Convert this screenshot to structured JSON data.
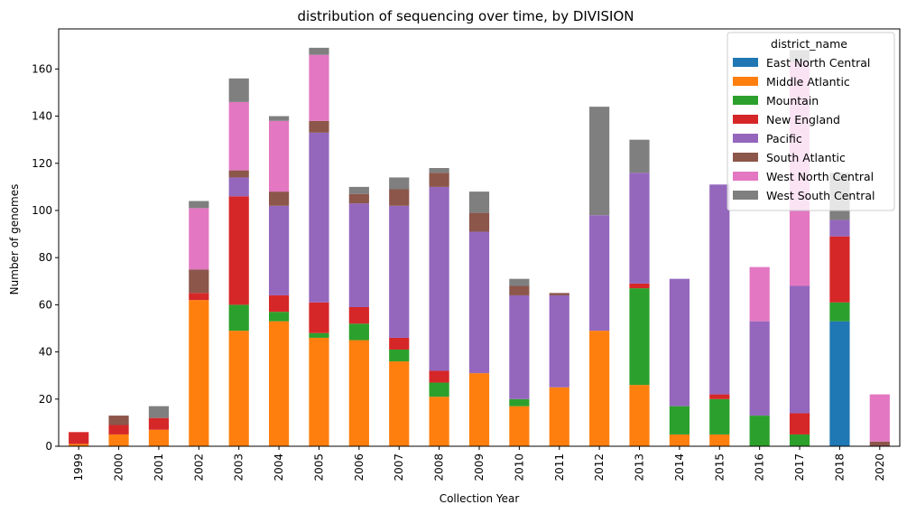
{
  "chart_data": {
    "type": "bar",
    "stacked": true,
    "title": "distribution of sequencing over time, by DIVISION",
    "xlabel": "Collection Year",
    "ylabel": "Number of genomes",
    "ylim": [
      0,
      177
    ],
    "yticks": [
      0,
      20,
      40,
      60,
      80,
      100,
      120,
      140,
      160
    ],
    "grid": false,
    "legend": {
      "title": "district_name",
      "placement": "top-right"
    },
    "categories": [
      "1999",
      "2000",
      "2001",
      "2002",
      "2003",
      "2004",
      "2005",
      "2006",
      "2007",
      "2008",
      "2009",
      "2010",
      "2011",
      "2012",
      "2013",
      "2014",
      "2015",
      "2016",
      "2017",
      "2018",
      "2020"
    ],
    "series": [
      {
        "name": "East North Central",
        "color": "#1f77b4",
        "values": [
          0,
          0,
          0,
          0,
          0,
          0,
          0,
          0,
          0,
          0,
          0,
          0,
          0,
          0,
          0,
          0,
          0,
          0,
          0,
          53,
          0
        ]
      },
      {
        "name": "Middle Atlantic",
        "color": "#ff7f0e",
        "values": [
          1,
          5,
          7,
          62,
          49,
          53,
          46,
          45,
          36,
          21,
          31,
          17,
          25,
          49,
          26,
          5,
          5,
          0,
          0,
          0,
          0
        ]
      },
      {
        "name": "Mountain",
        "color": "#2ca02c",
        "values": [
          0,
          0,
          0,
          0,
          11,
          4,
          2,
          7,
          5,
          6,
          0,
          3,
          0,
          0,
          41,
          12,
          15,
          13,
          5,
          8,
          0
        ]
      },
      {
        "name": "New England",
        "color": "#d62728",
        "values": [
          5,
          4,
          5,
          3,
          46,
          7,
          13,
          7,
          5,
          5,
          0,
          0,
          0,
          0,
          2,
          0,
          2,
          0,
          9,
          28,
          0
        ]
      },
      {
        "name": "Pacific",
        "color": "#9467bd",
        "values": [
          0,
          0,
          0,
          0,
          8,
          38,
          72,
          44,
          56,
          78,
          60,
          44,
          39,
          49,
          47,
          54,
          89,
          40,
          54,
          7,
          0
        ]
      },
      {
        "name": "South Atlantic",
        "color": "#8c564b",
        "values": [
          0,
          4,
          0,
          10,
          3,
          6,
          5,
          4,
          7,
          6,
          8,
          4,
          1,
          0,
          0,
          0,
          0,
          0,
          0,
          0,
          2
        ]
      },
      {
        "name": "West North Central",
        "color": "#e377c2",
        "values": [
          0,
          0,
          0,
          26,
          29,
          30,
          28,
          0,
          0,
          0,
          0,
          0,
          0,
          0,
          0,
          0,
          0,
          23,
          95,
          0,
          20
        ]
      },
      {
        "name": "West South Central",
        "color": "#7f7f7f",
        "values": [
          0,
          0,
          5,
          3,
          10,
          2,
          3,
          3,
          5,
          2,
          9,
          3,
          0,
          46,
          14,
          0,
          0,
          0,
          5,
          20,
          0
        ]
      }
    ]
  }
}
